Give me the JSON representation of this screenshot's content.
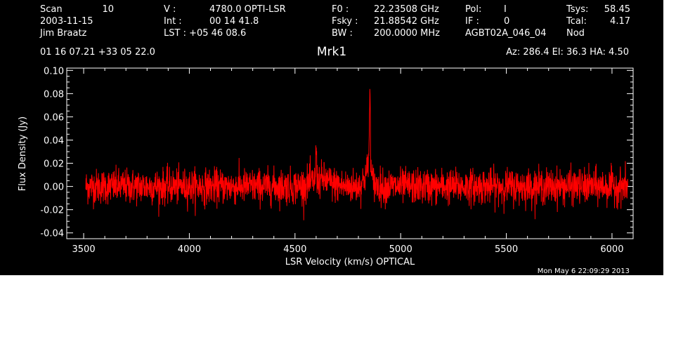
{
  "header": {
    "row1": [
      {
        "label": "Scan",
        "value": "10"
      },
      {
        "label": "V   :",
        "value": "4780.0 OPTI-LSR"
      },
      {
        "label": "F0   :",
        "value": "22.23508 GHz"
      },
      {
        "label": "Pol:",
        "value": "I"
      },
      {
        "label": "Tsys:",
        "value": "58.45"
      }
    ],
    "row2": [
      {
        "label": "2003-11-15",
        "value": ""
      },
      {
        "label": "Int  :",
        "value": "00 14 41.8"
      },
      {
        "label": "Fsky :",
        "value": "21.88542 GHz"
      },
      {
        "label": "IF :",
        "value": "0"
      },
      {
        "label": "Tcal:",
        "value": "4.17"
      }
    ],
    "row3": [
      {
        "label": "Jim Braatz",
        "value": ""
      },
      {
        "label": "LST : +05 46 08.6",
        "value": ""
      },
      {
        "label": "BW   :",
        "value": "200.0000 MHz"
      },
      {
        "label": "AGBT02A_046_04",
        "value": ""
      },
      {
        "label": "Nod",
        "value": ""
      }
    ],
    "coords": "01 16 07.21  +33 05 22.0",
    "source": "Mrk1",
    "azelha": "Az: 286.4   El:  36.3   HA:  4.50"
  },
  "timestamp": "Mon May  6 22:09:29 2013",
  "chart_data": {
    "type": "line",
    "xlabel": "LSR Velocity (km/s) OPTICAL",
    "ylabel": "Flux Density (Jy)",
    "xlim": [
      3420,
      6100
    ],
    "ylim": [
      -0.045,
      0.102
    ],
    "x_ticks": [
      3500,
      4000,
      4500,
      5000,
      5500,
      6000
    ],
    "x_tick_labels": [
      "3500",
      "4000",
      "4500",
      "5000",
      "5500",
      "6000"
    ],
    "y_ticks": [
      -0.04,
      -0.02,
      0.0,
      0.02,
      0.04,
      0.06,
      0.08,
      0.1
    ],
    "y_tick_labels": [
      "-0.04",
      "-0.02",
      "0.00",
      "0.02",
      "0.04",
      "0.06",
      "0.08",
      "0.10"
    ],
    "series": [
      {
        "color": "#ff0000",
        "x_range": [
          3510,
          6075
        ],
        "noise_rms": 0.0075,
        "features": [
          {
            "center": 4600,
            "peak": 0.043
          },
          {
            "center": 4855,
            "peak": 0.082
          },
          {
            "center": 4850,
            "peak": 0.04
          }
        ]
      }
    ]
  }
}
